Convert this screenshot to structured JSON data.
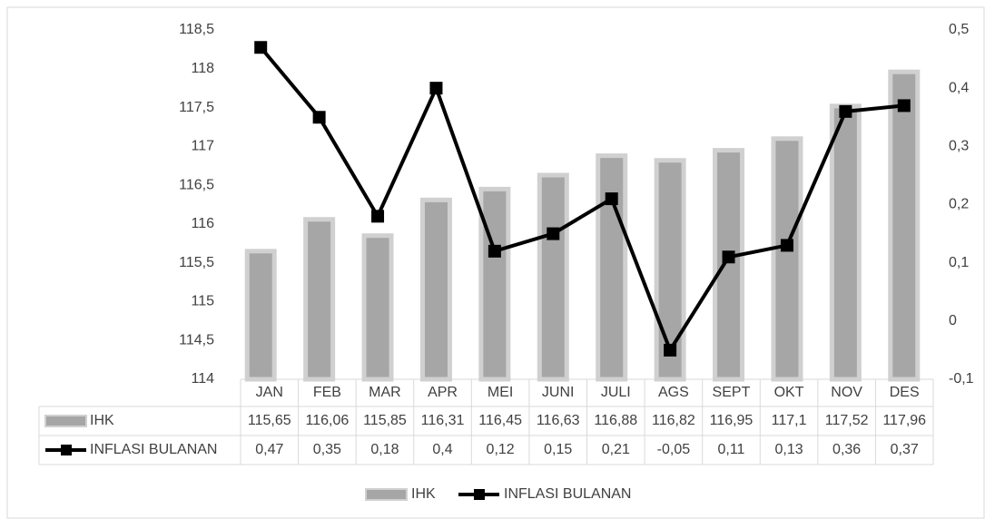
{
  "chart_data": {
    "type": "bar_line_table",
    "categories": [
      "JAN",
      "FEB",
      "MAR",
      "APR",
      "MEI",
      "JUNI",
      "JULI",
      "AGS",
      "SEPT",
      "OKT",
      "NOV",
      "DES"
    ],
    "series": [
      {
        "name": "IHK",
        "type": "bar",
        "color": "#a6a6a6",
        "edge_color": "#d0d0d0",
        "values": [
          115.65,
          116.06,
          115.85,
          116.31,
          116.45,
          116.63,
          116.88,
          116.82,
          116.95,
          117.1,
          117.52,
          117.96
        ],
        "value_labels": [
          "115,65",
          "116,06",
          "115,85",
          "116,31",
          "116,45",
          "116,63",
          "116,88",
          "116,82",
          "116,95",
          "117,1",
          "117,52",
          "117,96"
        ]
      },
      {
        "name": "INFLASI BULANAN",
        "type": "line",
        "axis": "y2",
        "color": "#000000",
        "values": [
          0.47,
          0.35,
          0.18,
          0.4,
          0.12,
          0.15,
          0.21,
          -0.05,
          0.11,
          0.13,
          0.36,
          0.37
        ],
        "value_labels": [
          "0,47",
          "0,35",
          "0,18",
          "0,4",
          "0,12",
          "0,15",
          "0,21",
          "-0,05",
          "0,11",
          "0,13",
          "0,36",
          "0,37"
        ]
      }
    ],
    "ylim": [
      114,
      118.5
    ],
    "yticks": [
      114,
      {
        "value": 114.5,
        "label": "114,5"
      },
      115,
      {
        "value": 115.5,
        "label": "115,5"
      },
      116,
      {
        "value": 116.5,
        "label": "116,5"
      },
      117,
      {
        "value": 117.5,
        "label": "117,5"
      },
      118,
      {
        "value": 118.5,
        "label": "118,5"
      }
    ],
    "y2lim": [
      -0.1,
      0.5
    ],
    "y2ticks": [
      {
        "value": -0.1,
        "label": "-0,1"
      },
      0,
      {
        "value": 0.1,
        "label": "0,1"
      },
      {
        "value": 0.2,
        "label": "0,2"
      },
      {
        "value": 0.3,
        "label": "0,3"
      },
      {
        "value": 0.4,
        "label": "0,4"
      },
      {
        "value": 0.5,
        "label": "0,5"
      }
    ],
    "grid": false,
    "legend": "bottom"
  }
}
